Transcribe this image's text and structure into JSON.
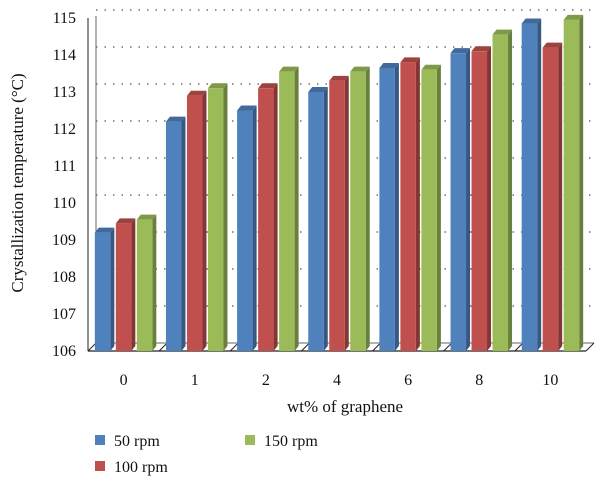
{
  "chart_data": {
    "type": "bar",
    "title": "",
    "xlabel": "wt% of graphene",
    "ylabel": "Crystallization temperature (°C)",
    "ylim": [
      106,
      115
    ],
    "yticks": [
      "106",
      "107",
      "108",
      "109",
      "110",
      "111",
      "112",
      "113",
      "114",
      "115"
    ],
    "categories": [
      "0",
      "1",
      "2",
      "4",
      "6",
      "8",
      "10"
    ],
    "series": [
      {
        "name": "50 rpm",
        "color": "#4F81BD",
        "values": [
          109.2,
          112.2,
          112.5,
          113.0,
          113.65,
          114.05,
          114.85
        ]
      },
      {
        "name": "100 rpm",
        "color": "#C0504D",
        "values": [
          109.45,
          112.9,
          113.1,
          113.3,
          113.8,
          114.1,
          114.2
        ]
      },
      {
        "name": "150 rpm",
        "color": "#9BBB59",
        "values": [
          109.55,
          113.1,
          113.55,
          113.55,
          113.6,
          114.55,
          114.95
        ]
      }
    ],
    "grid": "horizontal dotted",
    "legend_position": "bottom",
    "style": "3d-clustered-column"
  }
}
